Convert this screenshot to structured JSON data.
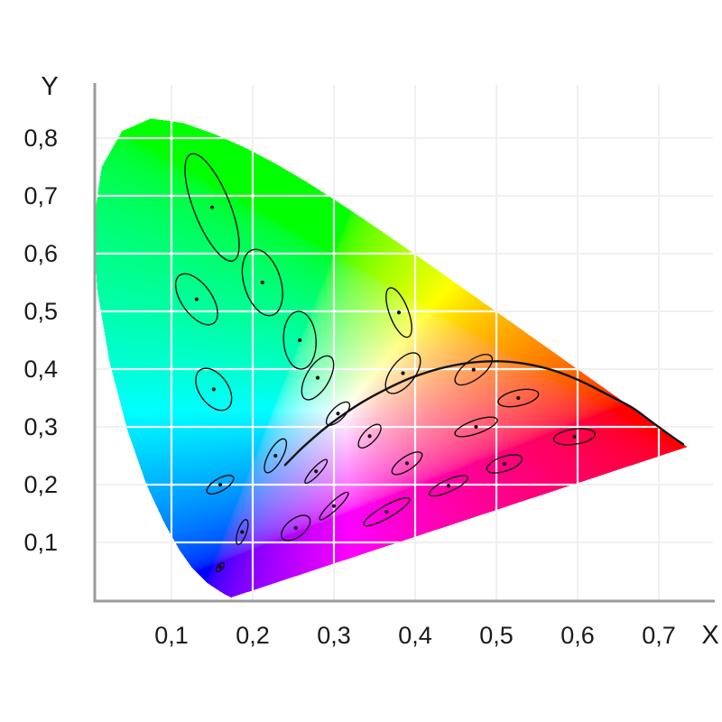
{
  "axes": {
    "x": {
      "label": "X",
      "ticks": [
        {
          "value": 0.1,
          "label": "0,1"
        },
        {
          "value": 0.2,
          "label": "0,2"
        },
        {
          "value": 0.3,
          "label": "0,3"
        },
        {
          "value": 0.4,
          "label": "0,4"
        },
        {
          "value": 0.5,
          "label": "0,5"
        },
        {
          "value": 0.6,
          "label": "0,6"
        },
        {
          "value": 0.7,
          "label": "0,7"
        }
      ]
    },
    "y": {
      "label": "Y",
      "ticks": [
        {
          "value": 0.1,
          "label": "0,1"
        },
        {
          "value": 0.2,
          "label": "0,2"
        },
        {
          "value": 0.3,
          "label": "0,3"
        },
        {
          "value": 0.4,
          "label": "0,4"
        },
        {
          "value": 0.5,
          "label": "0,5"
        },
        {
          "value": 0.6,
          "label": "0,6"
        },
        {
          "value": 0.7,
          "label": "0,7"
        },
        {
          "value": 0.8,
          "label": "0,8"
        }
      ]
    }
  },
  "colors": {
    "background": "#ffffff",
    "axis": "#9b9b9b",
    "grid_inside": "rgba(255,255,255,0.95)",
    "grid_outside": "#f0f0f0",
    "curve": "#141414",
    "ellipse": "#101010",
    "text": "#1a1a1a"
  },
  "chart_data": {
    "type": "scatter",
    "subtype": "cie-1931-xy-chromaticity-diagram",
    "title": "",
    "xlabel": "X",
    "ylabel": "Y",
    "xlim": [
      0,
      0.765
    ],
    "ylim": [
      0,
      0.89
    ],
    "grid": true,
    "decimal_separator": ",",
    "x_tick_values": [
      0.1,
      0.2,
      0.3,
      0.4,
      0.5,
      0.6,
      0.7
    ],
    "y_tick_values": [
      0.1,
      0.2,
      0.3,
      0.4,
      0.5,
      0.6,
      0.7,
      0.8
    ],
    "spectral_locus_xy": [
      [
        380,
        0.1741,
        0.005
      ],
      [
        410,
        0.1726,
        0.0048
      ],
      [
        440,
        0.1644,
        0.0109
      ],
      [
        450,
        0.1566,
        0.0177
      ],
      [
        460,
        0.144,
        0.0297
      ],
      [
        470,
        0.1241,
        0.0578
      ],
      [
        475,
        0.1096,
        0.0868
      ],
      [
        480,
        0.0913,
        0.1327
      ],
      [
        485,
        0.0687,
        0.2007
      ],
      [
        490,
        0.0454,
        0.295
      ],
      [
        495,
        0.0235,
        0.4127
      ],
      [
        500,
        0.0082,
        0.5384
      ],
      [
        505,
        0.0039,
        0.6548
      ],
      [
        510,
        0.0139,
        0.7502
      ],
      [
        515,
        0.0389,
        0.812
      ],
      [
        520,
        0.0743,
        0.8338
      ],
      [
        525,
        0.1142,
        0.8262
      ],
      [
        530,
        0.1547,
        0.8059
      ],
      [
        535,
        0.1929,
        0.7816
      ],
      [
        540,
        0.2296,
        0.7543
      ],
      [
        545,
        0.2658,
        0.7243
      ],
      [
        550,
        0.3016,
        0.6923
      ],
      [
        555,
        0.3373,
        0.6589
      ],
      [
        560,
        0.3731,
        0.6245
      ],
      [
        565,
        0.4087,
        0.5896
      ],
      [
        570,
        0.4441,
        0.5547
      ],
      [
        575,
        0.4788,
        0.5202
      ],
      [
        580,
        0.5125,
        0.4866
      ],
      [
        585,
        0.5448,
        0.4544
      ],
      [
        590,
        0.5752,
        0.4242
      ],
      [
        595,
        0.6029,
        0.3965
      ],
      [
        600,
        0.627,
        0.3725
      ],
      [
        605,
        0.6482,
        0.3514
      ],
      [
        610,
        0.6658,
        0.334
      ],
      [
        620,
        0.6915,
        0.3083
      ],
      [
        635,
        0.714,
        0.2859
      ],
      [
        650,
        0.726,
        0.274
      ],
      [
        700,
        0.7347,
        0.2653
      ]
    ],
    "planckian_locus_xy": [
      [
        0.2399,
        0.234
      ],
      [
        0.2565,
        0.2577
      ],
      [
        0.2637,
        0.2673
      ],
      [
        0.2807,
        0.2884
      ],
      [
        0.2952,
        0.3048
      ],
      [
        0.3221,
        0.3318
      ],
      [
        0.3451,
        0.3516
      ],
      [
        0.3805,
        0.3768
      ],
      [
        0.4053,
        0.3907
      ],
      [
        0.4369,
        0.4041
      ],
      [
        0.477,
        0.4137
      ],
      [
        0.5267,
        0.4133
      ],
      [
        0.5857,
        0.3931
      ],
      [
        0.6528,
        0.3444
      ],
      [
        0.6693,
        0.3322
      ],
      [
        0.6898,
        0.3102
      ],
      [
        0.7042,
        0.2952
      ],
      [
        0.714,
        0.2855
      ],
      [
        0.7219,
        0.2776
      ],
      [
        0.73,
        0.27
      ]
    ],
    "ellipse_magnification": 10,
    "macadam_ellipses": [
      {
        "x": 0.16,
        "y": 0.057,
        "a": 0.00085,
        "b": 0.00035,
        "theta": 62.5
      },
      {
        "x": 0.187,
        "y": 0.118,
        "a": 0.0022,
        "b": 0.00055,
        "theta": 77.0
      },
      {
        "x": 0.253,
        "y": 0.125,
        "a": 0.0025,
        "b": 0.0013,
        "theta": 55.5
      },
      {
        "x": 0.15,
        "y": 0.68,
        "a": 0.0096,
        "b": 0.0023,
        "theta": 105.0
      },
      {
        "x": 0.131,
        "y": 0.521,
        "a": 0.0047,
        "b": 0.002,
        "theta": 112.5
      },
      {
        "x": 0.212,
        "y": 0.55,
        "a": 0.0058,
        "b": 0.0023,
        "theta": 100.0
      },
      {
        "x": 0.258,
        "y": 0.45,
        "a": 0.005,
        "b": 0.002,
        "theta": 92.0
      },
      {
        "x": 0.152,
        "y": 0.365,
        "a": 0.0038,
        "b": 0.0019,
        "theta": 110.0
      },
      {
        "x": 0.28,
        "y": 0.385,
        "a": 0.004,
        "b": 0.0015,
        "theta": 70.0
      },
      {
        "x": 0.38,
        "y": 0.498,
        "a": 0.0044,
        "b": 0.0012,
        "theta": 104.0
      },
      {
        "x": 0.16,
        "y": 0.2,
        "a": 0.0021,
        "b": 0.00095,
        "theta": 44.0
      },
      {
        "x": 0.228,
        "y": 0.25,
        "a": 0.0031,
        "b": 0.0009,
        "theta": 70.0
      },
      {
        "x": 0.305,
        "y": 0.323,
        "a": 0.0023,
        "b": 0.0009,
        "theta": 58.0
      },
      {
        "x": 0.385,
        "y": 0.393,
        "a": 0.0038,
        "b": 0.0016,
        "theta": 65.5
      },
      {
        "x": 0.472,
        "y": 0.399,
        "a": 0.0032,
        "b": 0.0014,
        "theta": 51.0
      },
      {
        "x": 0.527,
        "y": 0.35,
        "a": 0.0026,
        "b": 0.0013,
        "theta": 20.0
      },
      {
        "x": 0.475,
        "y": 0.3,
        "a": 0.0029,
        "b": 0.0011,
        "theta": 28.5
      },
      {
        "x": 0.51,
        "y": 0.236,
        "a": 0.0024,
        "b": 0.0012,
        "theta": 29.5
      },
      {
        "x": 0.596,
        "y": 0.283,
        "a": 0.0026,
        "b": 0.0013,
        "theta": 13.0
      },
      {
        "x": 0.344,
        "y": 0.284,
        "a": 0.0023,
        "b": 0.0009,
        "theta": 60.0
      },
      {
        "x": 0.39,
        "y": 0.237,
        "a": 0.0025,
        "b": 0.001,
        "theta": 47.0
      },
      {
        "x": 0.441,
        "y": 0.198,
        "a": 0.0028,
        "b": 0.00095,
        "theta": 34.5
      },
      {
        "x": 0.278,
        "y": 0.223,
        "a": 0.0024,
        "b": 0.00055,
        "theta": 57.5
      },
      {
        "x": 0.3,
        "y": 0.163,
        "a": 0.0029,
        "b": 0.0006,
        "theta": 54.0
      },
      {
        "x": 0.365,
        "y": 0.153,
        "a": 0.0036,
        "b": 0.00095,
        "theta": 40.0
      }
    ]
  }
}
